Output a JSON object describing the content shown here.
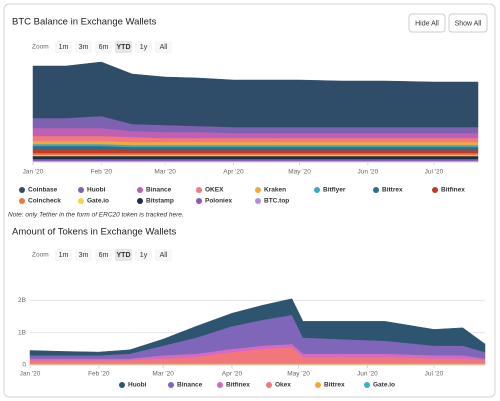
{
  "controls": {
    "hide_all": "Hide All",
    "show_all": "Show All"
  },
  "note": "Note: only Tether in the form of ERC20 token is tracked here.",
  "chart_data": [
    {
      "type": "stacked_area",
      "title": "BTC Balance in Exchange Wallets",
      "zoom_label": "Zoom",
      "zoom_buttons": [
        "1m",
        "3m",
        "6m",
        "YTD",
        "1y",
        "All"
      ],
      "zoom_selected": "YTD",
      "x": [
        0,
        15,
        31,
        45,
        60,
        75,
        91,
        110,
        121,
        140,
        160,
        182,
        202
      ],
      "xlim": [
        0,
        202
      ],
      "xticks": [
        {
          "value": 0,
          "label": "Jan '20"
        },
        {
          "value": 31,
          "label": "Feb '20"
        },
        {
          "value": 60,
          "label": "Mar '20"
        },
        {
          "value": 91,
          "label": "Apr '20"
        },
        {
          "value": 121,
          "label": "May '20"
        },
        {
          "value": 152,
          "label": "Jun '20"
        },
        {
          "value": 182,
          "label": "Jul '20"
        }
      ],
      "ylim": [
        0,
        100
      ],
      "grid": false,
      "legend_columns": 8,
      "series": [
        {
          "name": "Coinbase",
          "color": "#2f4d68",
          "values": [
            52,
            52,
            54,
            50,
            48,
            48,
            47,
            47,
            47,
            46,
            46,
            45,
            45
          ]
        },
        {
          "name": "Huobi",
          "color": "#7c62b0",
          "values": [
            10,
            10,
            12,
            7,
            7,
            6,
            6,
            6,
            6,
            6,
            6,
            6,
            6
          ]
        },
        {
          "name": "Binance",
          "color": "#c060b4",
          "values": [
            8,
            8,
            8,
            6,
            6,
            6,
            5,
            5,
            5,
            5,
            5,
            5,
            5
          ]
        },
        {
          "name": "OKEX",
          "color": "#f07a7c",
          "values": [
            5,
            5,
            5,
            5,
            4,
            4,
            4,
            4,
            4,
            4,
            4,
            4,
            4
          ]
        },
        {
          "name": "Kraken",
          "color": "#f2a93b",
          "values": [
            3,
            3,
            3,
            3,
            3,
            3,
            3,
            3,
            3,
            3,
            3,
            3,
            3
          ]
        },
        {
          "name": "Bitflyer",
          "color": "#3aa8c1",
          "values": [
            2,
            2,
            2,
            2,
            2,
            2,
            2,
            2,
            2,
            2,
            2,
            2,
            2
          ]
        },
        {
          "name": "Bittrex",
          "color": "#2b6f87",
          "values": [
            3,
            3,
            3,
            3,
            3,
            3,
            3,
            3,
            3,
            3,
            3,
            3,
            3
          ]
        },
        {
          "name": "Bitfinex",
          "color": "#c0392b",
          "values": [
            4,
            4,
            4,
            3,
            3,
            3,
            3,
            3,
            3,
            3,
            3,
            3,
            3
          ]
        },
        {
          "name": "Coincheck",
          "color": "#ec7a3a",
          "values": [
            2,
            2,
            2,
            2,
            2,
            2,
            2,
            2,
            2,
            2,
            2,
            2,
            2
          ]
        },
        {
          "name": "Gate.io",
          "color": "#f5d547",
          "values": [
            1,
            1,
            1,
            1,
            1,
            1,
            1,
            1,
            1,
            1,
            1,
            1,
            1
          ]
        },
        {
          "name": "Bitstamp",
          "color": "#1c2f4a",
          "values": [
            3,
            3,
            3,
            3,
            3,
            3,
            3,
            3,
            3,
            3,
            3,
            3,
            3
          ]
        },
        {
          "name": "Poloniex",
          "color": "#8e5bb5",
          "values": [
            2,
            2,
            2,
            2,
            2,
            2,
            2,
            2,
            2,
            2,
            2,
            2,
            2
          ]
        },
        {
          "name": "BTC.top",
          "color": "#b48de0",
          "values": [
            1,
            1,
            1,
            1,
            1,
            1,
            1,
            1,
            1,
            1,
            1,
            1,
            1
          ]
        }
      ]
    },
    {
      "type": "stacked_area",
      "title": "Amount of Tokens in Exchange Wallets",
      "zoom_label": "Zoom",
      "zoom_buttons": [
        "1m",
        "3m",
        "6m",
        "YTD",
        "1y",
        "All"
      ],
      "zoom_selected": "YTD",
      "x": [
        0,
        15,
        31,
        45,
        60,
        75,
        91,
        105,
        118,
        123,
        140,
        160,
        182,
        195,
        205
      ],
      "xlim": [
        0,
        205
      ],
      "xticks": [
        {
          "value": 0,
          "label": "Jan '20"
        },
        {
          "value": 31,
          "label": "Feb '20"
        },
        {
          "value": 60,
          "label": "Mar '20"
        },
        {
          "value": 91,
          "label": "Apr '20"
        },
        {
          "value": 121,
          "label": "May '20"
        },
        {
          "value": 152,
          "label": "Jun '20"
        },
        {
          "value": 182,
          "label": "Jul '20"
        }
      ],
      "ylim": [
        0,
        3
      ],
      "yticks": [
        0,
        {
          "value": 1,
          "label": "1B"
        },
        {
          "value": 2,
          "label": "2B"
        }
      ],
      "grid": true,
      "legend_columns": 6,
      "series": [
        {
          "name": "Huobi",
          "color": "#2e5570",
          "values": [
            0.15,
            0.12,
            0.1,
            0.12,
            0.2,
            0.35,
            0.4,
            0.45,
            0.5,
            0.5,
            0.55,
            0.6,
            0.5,
            0.55,
            0.25
          ]
        },
        {
          "name": "Binance",
          "color": "#8066b8",
          "values": [
            0.1,
            0.1,
            0.1,
            0.15,
            0.3,
            0.5,
            0.7,
            0.8,
            0.9,
            0.5,
            0.45,
            0.4,
            0.3,
            0.3,
            0.2
          ]
        },
        {
          "name": "Bitfinex",
          "color": "#d36bc4",
          "values": [
            0.05,
            0.05,
            0.05,
            0.05,
            0.1,
            0.1,
            0.1,
            0.1,
            0.1,
            0.1,
            0.1,
            0.1,
            0.1,
            0.1,
            0.05
          ]
        },
        {
          "name": "Okex",
          "color": "#f2777a",
          "values": [
            0.1,
            0.1,
            0.1,
            0.1,
            0.15,
            0.2,
            0.35,
            0.45,
            0.5,
            0.2,
            0.2,
            0.2,
            0.15,
            0.15,
            0.1
          ]
        },
        {
          "name": "Bittrex",
          "color": "#f5a53a",
          "values": [
            0.03,
            0.03,
            0.03,
            0.03,
            0.03,
            0.03,
            0.03,
            0.03,
            0.03,
            0.03,
            0.03,
            0.03,
            0.03,
            0.03,
            0.03
          ]
        },
        {
          "name": "Gate.io",
          "color": "#3ab0c8",
          "values": [
            0.02,
            0.02,
            0.02,
            0.02,
            0.02,
            0.02,
            0.02,
            0.02,
            0.02,
            0.02,
            0.02,
            0.02,
            0.02,
            0.02,
            0.02
          ]
        }
      ]
    }
  ]
}
